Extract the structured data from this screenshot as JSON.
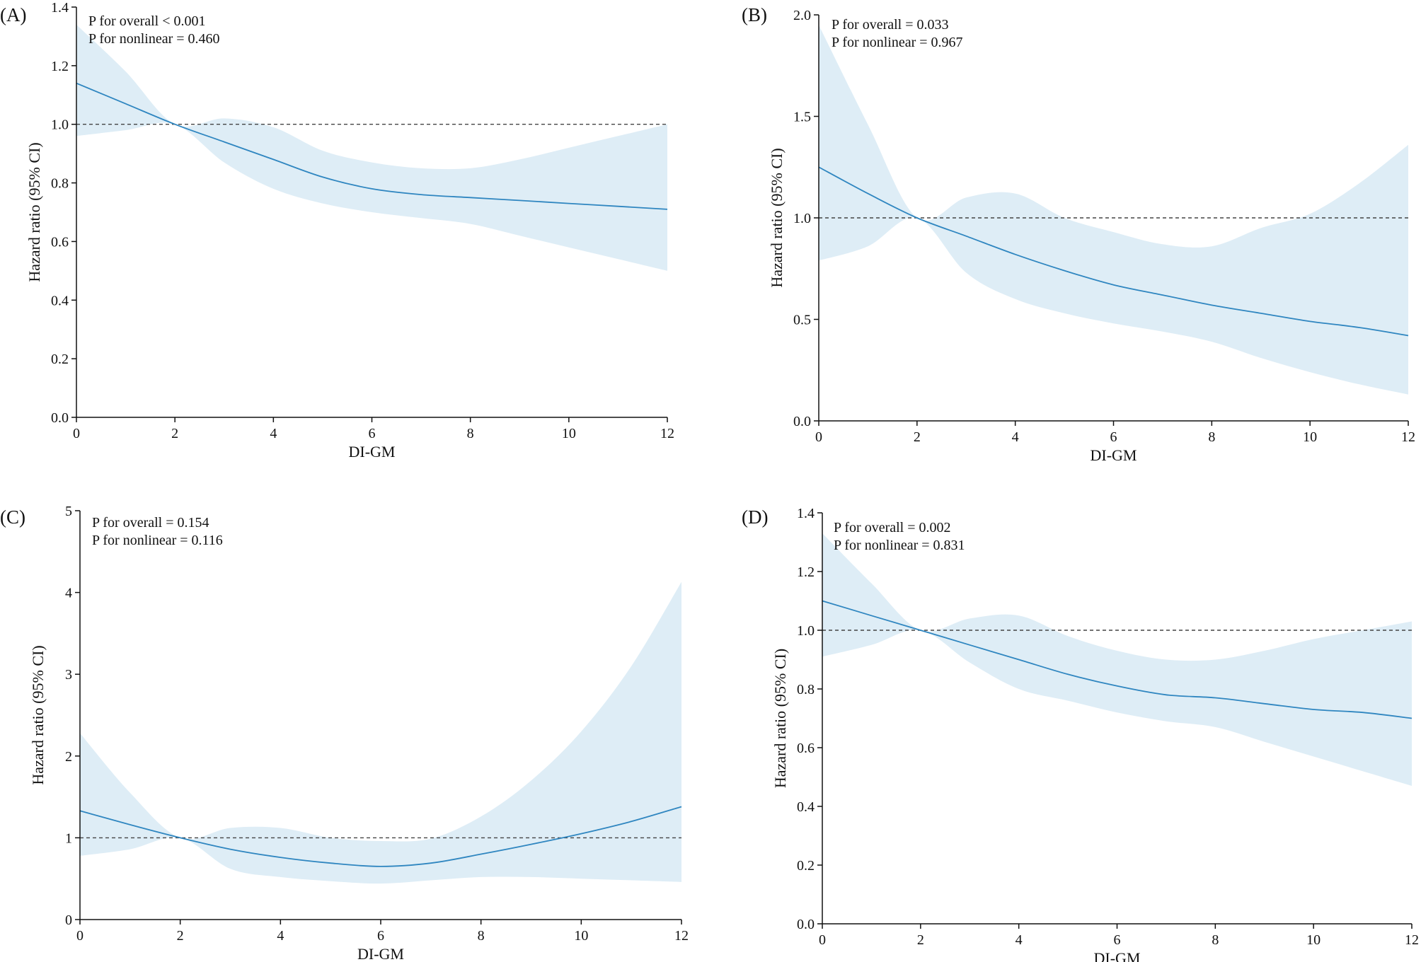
{
  "colors": {
    "curve": "#2f86c0",
    "band": "#deedf6",
    "axis": "#111111",
    "ref": "#444444"
  },
  "chart_data": [
    {
      "type": "line",
      "panel_label": "(A)",
      "p_overall": "P for overall < 0.001",
      "p_nonlinear": "P for nonlinear = 0.460",
      "xlabel": "DI-GM",
      "ylabel": "Hazard ratio (95% CI)",
      "xlim": [
        0,
        12
      ],
      "ylim": [
        0,
        1.4
      ],
      "xticks": [
        0,
        2,
        4,
        6,
        8,
        10,
        12
      ],
      "yticks": [
        0.0,
        0.2,
        0.4,
        0.6,
        0.8,
        1.0,
        1.2,
        1.4
      ],
      "ytick_labels": [
        "0.0",
        "0.2",
        "0.4",
        "0.6",
        "0.8",
        "1.0",
        "1.2",
        "1.4"
      ],
      "reference_line": 1.0,
      "x": [
        0,
        1,
        2,
        3,
        4,
        5,
        6,
        7,
        8,
        9,
        10,
        11,
        12
      ],
      "hr": [
        1.14,
        1.07,
        1.0,
        0.94,
        0.88,
        0.82,
        0.78,
        0.76,
        0.75,
        0.74,
        0.73,
        0.72,
        0.71
      ],
      "lower": [
        0.96,
        0.98,
        1.0,
        0.87,
        0.78,
        0.73,
        0.7,
        0.68,
        0.66,
        0.62,
        0.58,
        0.54,
        0.5
      ],
      "upper": [
        1.34,
        1.18,
        1.0,
        1.02,
        0.99,
        0.91,
        0.87,
        0.85,
        0.85,
        0.88,
        0.92,
        0.96,
        1.0
      ]
    },
    {
      "type": "line",
      "panel_label": "(B)",
      "p_overall": "P for overall = 0.033",
      "p_nonlinear": "P for nonlinear = 0.967",
      "xlabel": "DI-GM",
      "ylabel": "Hazard ratio (95% CI)",
      "xlim": [
        0,
        12
      ],
      "ylim": [
        0,
        2.0
      ],
      "xticks": [
        0,
        2,
        4,
        6,
        8,
        10,
        12
      ],
      "yticks": [
        0.0,
        0.5,
        1.0,
        1.5,
        2.0
      ],
      "ytick_labels": [
        "0.0",
        "0.5",
        "1.0",
        "1.5",
        "2.0"
      ],
      "reference_line": 1.0,
      "x": [
        0,
        1,
        2,
        3,
        4,
        5,
        6,
        7,
        8,
        9,
        10,
        11,
        12
      ],
      "hr": [
        1.25,
        1.12,
        1.0,
        0.91,
        0.82,
        0.74,
        0.67,
        0.62,
        0.57,
        0.53,
        0.49,
        0.46,
        0.42
      ],
      "lower": [
        0.79,
        0.86,
        1.0,
        0.73,
        0.6,
        0.53,
        0.48,
        0.44,
        0.39,
        0.31,
        0.24,
        0.18,
        0.13
      ],
      "upper": [
        1.95,
        1.46,
        1.0,
        1.1,
        1.12,
        1.0,
        0.93,
        0.87,
        0.86,
        0.95,
        1.02,
        1.17,
        1.36
      ]
    },
    {
      "type": "line",
      "panel_label": "(C)",
      "p_overall": "P for overall = 0.154",
      "p_nonlinear": "P for nonlinear = 0.116",
      "xlabel": "DI-GM",
      "ylabel": "Hazard ratio (95% CI)",
      "xlim": [
        0,
        12
      ],
      "ylim": [
        0,
        5
      ],
      "xticks": [
        0,
        2,
        4,
        6,
        8,
        10,
        12
      ],
      "yticks": [
        0,
        1,
        2,
        3,
        4,
        5
      ],
      "ytick_labels": [
        "0",
        "1",
        "2",
        "3",
        "4",
        "5"
      ],
      "reference_line": 1.0,
      "x": [
        0,
        1,
        2,
        3,
        4,
        5,
        6,
        7,
        8,
        9,
        10,
        11,
        12
      ],
      "hr": [
        1.33,
        1.16,
        1.0,
        0.86,
        0.76,
        0.69,
        0.65,
        0.69,
        0.8,
        0.92,
        1.05,
        1.2,
        1.38
      ],
      "lower": [
        0.78,
        0.86,
        1.0,
        0.62,
        0.52,
        0.47,
        0.44,
        0.48,
        0.52,
        0.52,
        0.5,
        0.48,
        0.46
      ],
      "upper": [
        2.28,
        1.55,
        1.0,
        1.12,
        1.12,
        1.0,
        0.96,
        0.99,
        1.26,
        1.7,
        2.3,
        3.1,
        4.13
      ]
    },
    {
      "type": "line",
      "panel_label": "(D)",
      "p_overall": "P for overall = 0.002",
      "p_nonlinear": "P for nonlinear = 0.831",
      "xlabel": "DI-GM",
      "ylabel": "Hazard ratio (95% CI)",
      "xlim": [
        0,
        12
      ],
      "ylim": [
        0,
        1.4
      ],
      "xticks": [
        0,
        2,
        4,
        6,
        8,
        10,
        12
      ],
      "yticks": [
        0.0,
        0.2,
        0.4,
        0.6,
        0.8,
        1.0,
        1.2,
        1.4
      ],
      "ytick_labels": [
        "0.0",
        "0.2",
        "0.4",
        "0.6",
        "0.8",
        "1.0",
        "1.2",
        "1.4"
      ],
      "reference_line": 1.0,
      "x": [
        0,
        1,
        2,
        3,
        4,
        5,
        6,
        7,
        8,
        9,
        10,
        11,
        12
      ],
      "hr": [
        1.1,
        1.05,
        1.0,
        0.95,
        0.9,
        0.85,
        0.81,
        0.78,
        0.77,
        0.75,
        0.73,
        0.72,
        0.7
      ],
      "lower": [
        0.91,
        0.95,
        1.0,
        0.89,
        0.8,
        0.76,
        0.72,
        0.69,
        0.67,
        0.62,
        0.57,
        0.52,
        0.47
      ],
      "upper": [
        1.33,
        1.16,
        1.0,
        1.04,
        1.05,
        0.98,
        0.93,
        0.9,
        0.9,
        0.93,
        0.97,
        1.0,
        1.03
      ]
    }
  ]
}
